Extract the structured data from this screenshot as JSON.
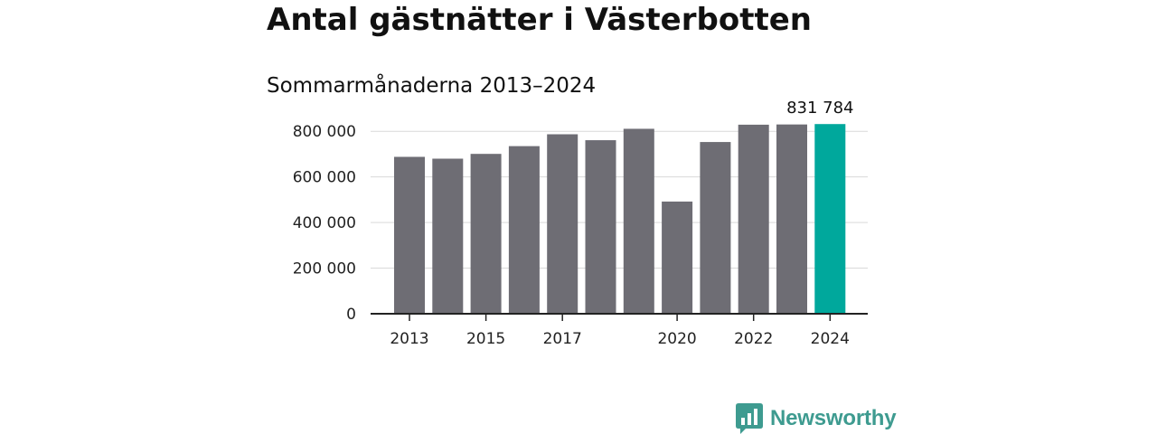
{
  "title": "Antal gästnätter i Västerbotten",
  "subtitle": "Sommarmånaderna 2013–2024",
  "brand": {
    "name": "Newsworthy",
    "color": "#3e9b90",
    "icon": "newsworthy-logo-icon"
  },
  "colors": {
    "bar": "#6e6d74",
    "highlight": "#00a89c",
    "grid": "#d9d9d9",
    "axis": "#222222"
  },
  "chart_data": {
    "type": "bar",
    "x": [
      2013,
      2014,
      2015,
      2016,
      2017,
      2018,
      2019,
      2020,
      2021,
      2022,
      2023,
      2024
    ],
    "values": [
      688000,
      680000,
      701000,
      735000,
      787000,
      761000,
      811000,
      492000,
      753000,
      829000,
      830000,
      831784
    ],
    "x_tick_labels": [
      "2013",
      "2015",
      "2017",
      "2020",
      "2022",
      "2024"
    ],
    "y_ticks": [
      0,
      200000,
      400000,
      600000,
      800000
    ],
    "y_tick_labels": [
      "0",
      "200 000",
      "400 000",
      "600 000",
      "800 000"
    ],
    "ylim": [
      0,
      900000
    ],
    "highlight_index": 11,
    "highlight_label": "831 784",
    "grid": true
  }
}
